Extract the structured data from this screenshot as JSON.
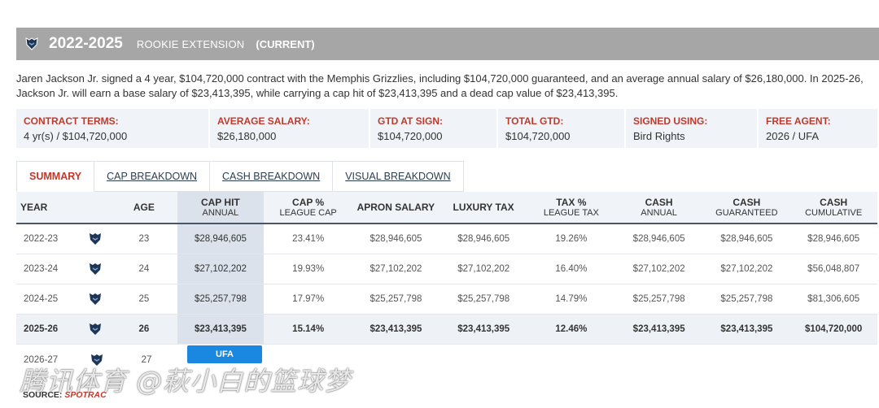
{
  "header": {
    "years": "2022-2025",
    "type": "ROOKIE EXTENSION",
    "status": "(CURRENT)"
  },
  "description": "Jaren Jackson Jr. signed a 4 year, $104,720,000 contract with the Memphis Grizzlies, including $104,720,000 guaranteed, and an average annual salary of $26,180,000. In 2025-26, Jackson Jr. will earn a base salary of $23,413,395, while carrying a cap hit of $23,413,395 and a dead cap value of $23,413,395.",
  "terms": [
    {
      "label": "CONTRACT TERMS:",
      "value": "4 yr(s) / $104,720,000"
    },
    {
      "label": "AVERAGE SALARY:",
      "value": "$26,180,000"
    },
    {
      "label": "GTD AT SIGN:",
      "value": "$104,720,000"
    },
    {
      "label": "TOTAL GTD:",
      "value": "$104,720,000"
    },
    {
      "label": "SIGNED USING:",
      "value": "Bird Rights"
    },
    {
      "label": "FREE AGENT:",
      "value": "2026 / UFA"
    }
  ],
  "tabs": [
    "SUMMARY",
    "CAP BREAKDOWN",
    "CASH BREAKDOWN",
    "VISUAL BREAKDOWN"
  ],
  "columns": {
    "year": "YEAR",
    "age": "AGE",
    "cap_hit": "CAP HIT",
    "cap_hit_sub": "ANNUAL",
    "cap_pct": "CAP %",
    "cap_pct_sub": "LEAGUE CAP",
    "apron": "APRON SALARY",
    "luxury": "LUXURY TAX",
    "tax_pct": "TAX %",
    "tax_pct_sub": "LEAGUE TAX",
    "cash": "CASH",
    "cash_sub": "ANNUAL",
    "cash_g": "CASH",
    "cash_g_sub": "GUARANTEED",
    "cash_c": "CASH",
    "cash_c_sub": "CUMULATIVE"
  },
  "rows": [
    {
      "year": "2022-23",
      "age": "23",
      "cap_hit": "$28,946,605",
      "cap_pct": "23.41%",
      "apron": "$28,946,605",
      "luxury": "$28,946,605",
      "tax_pct": "19.26%",
      "cash": "$28,946,605",
      "cash_g": "$28,946,605",
      "cash_c": "$28,946,605"
    },
    {
      "year": "2023-24",
      "age": "24",
      "cap_hit": "$27,102,202",
      "cap_pct": "19.93%",
      "apron": "$27,102,202",
      "luxury": "$27,102,202",
      "tax_pct": "16.40%",
      "cash": "$27,102,202",
      "cash_g": "$27,102,202",
      "cash_c": "$56,048,807"
    },
    {
      "year": "2024-25",
      "age": "25",
      "cap_hit": "$25,257,798",
      "cap_pct": "17.97%",
      "apron": "$25,257,798",
      "luxury": "$25,257,798",
      "tax_pct": "14.79%",
      "cash": "$25,257,798",
      "cash_g": "$25,257,798",
      "cash_c": "$81,306,605"
    },
    {
      "year": "2025-26",
      "age": "26",
      "cap_hit": "$23,413,395",
      "cap_pct": "15.14%",
      "apron": "$23,413,395",
      "luxury": "$23,413,395",
      "tax_pct": "12.46%",
      "cash": "$23,413,395",
      "cash_g": "$23,413,395",
      "cash_c": "$104,720,000"
    }
  ],
  "ufa_row": {
    "year": "2026-27",
    "age": "27",
    "badge": "UFA"
  },
  "source": {
    "label": "SOURCE:",
    "brand": "SPOTRAC"
  },
  "watermark": "腾讯体育 @萩小白的篮球梦",
  "colors": {
    "accent": "#c0392b",
    "header_bg": "#a6a6a6",
    "badge": "#1a87e0",
    "team_navy": "#1d3557"
  }
}
